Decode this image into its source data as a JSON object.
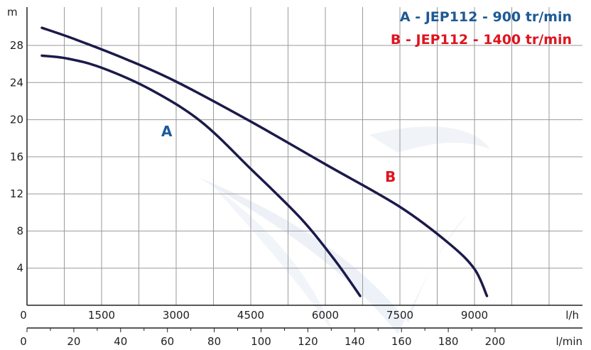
{
  "chart_data": {
    "type": "line",
    "ylabel": "m",
    "xlabel": "l/h",
    "x2label": "l/min",
    "ylim": [
      0,
      30
    ],
    "xlim": [
      0,
      12500
    ],
    "y_ticks": [
      4,
      8,
      12,
      16,
      20,
      24,
      28
    ],
    "x_ticks": [
      0,
      1500,
      3000,
      4500,
      6000,
      7500,
      9000
    ],
    "x2_ticks": [
      0,
      20,
      40,
      60,
      80,
      100,
      120,
      140,
      160,
      180,
      200
    ],
    "grid": true,
    "legend": [
      {
        "key": "A",
        "text": "A  -  JEP112 - 900 tr/min",
        "color": "#1d5a96"
      },
      {
        "key": "B",
        "text": "B  -  JEP112 - 1400 tr/min",
        "color": "#e0141e"
      }
    ],
    "series": [
      {
        "name": "A",
        "color": "#1b1a4a",
        "label_color": "#1d5a96",
        "label_at": [
          2700,
          18.2
        ],
        "points": [
          [
            300,
            26.9
          ],
          [
            800,
            26.6
          ],
          [
            1500,
            25.6
          ],
          [
            2500,
            23.2
          ],
          [
            3500,
            19.8
          ],
          [
            4500,
            14.7
          ],
          [
            5500,
            9.4
          ],
          [
            6200,
            4.8
          ],
          [
            6700,
            1.0
          ]
        ]
      },
      {
        "name": "B",
        "color": "#1b1a4a",
        "label_color": "#e0141e",
        "label_at": [
          7200,
          13.3
        ],
        "points": [
          [
            300,
            29.9
          ],
          [
            1000,
            28.6
          ],
          [
            2000,
            26.5
          ],
          [
            3000,
            24.1
          ],
          [
            4500,
            19.8
          ],
          [
            6000,
            15.2
          ],
          [
            7500,
            10.6
          ],
          [
            8500,
            6.6
          ],
          [
            9000,
            3.9
          ],
          [
            9250,
            1.0
          ]
        ]
      }
    ]
  }
}
